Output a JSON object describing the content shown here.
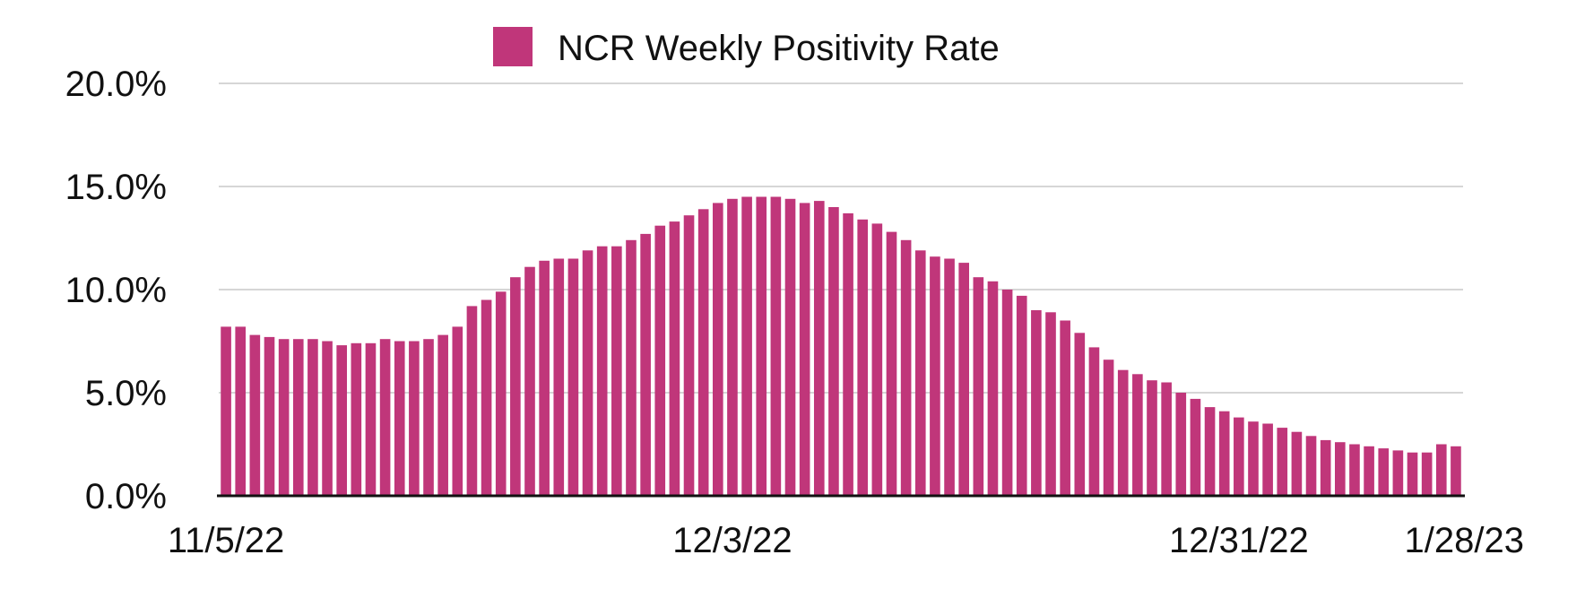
{
  "chart_data": {
    "type": "bar",
    "title": "",
    "xlabel": "",
    "ylabel": "",
    "ylim": [
      0,
      20
    ],
    "y_tick_values": [
      0,
      5,
      10,
      15,
      20
    ],
    "y_tick_labels": [
      "0.0%",
      "5.0%",
      "10.0%",
      "15.0%",
      "20.0%"
    ],
    "x_tick_labels": [
      {
        "label": "11/5/22",
        "index": 0
      },
      {
        "label": "12/3/22",
        "index": 35
      },
      {
        "label": "12/31/22",
        "index": 70
      },
      {
        "label": "1/28/23",
        "index": 105
      }
    ],
    "grid": true,
    "legend_position": "top-center",
    "series": [
      {
        "name": "NCR Weekly Positivity Rate",
        "color": "#c0367a",
        "values": [
          8.2,
          8.2,
          7.8,
          7.7,
          7.6,
          7.6,
          7.6,
          7.5,
          7.3,
          7.4,
          7.4,
          7.6,
          7.5,
          7.5,
          7.6,
          7.8,
          8.2,
          9.2,
          9.5,
          9.9,
          10.6,
          11.1,
          11.4,
          11.5,
          11.5,
          11.9,
          12.1,
          12.1,
          12.4,
          12.7,
          13.1,
          13.3,
          13.6,
          13.9,
          14.2,
          14.4,
          14.5,
          14.5,
          14.5,
          14.4,
          14.2,
          14.3,
          14.0,
          13.7,
          13.4,
          13.2,
          12.8,
          12.4,
          11.9,
          11.6,
          11.5,
          11.3,
          10.6,
          10.4,
          10.0,
          9.7,
          9.0,
          8.9,
          8.5,
          7.9,
          7.2,
          6.6,
          6.1,
          5.9,
          5.6,
          5.5,
          5.0,
          4.7,
          4.3,
          4.1,
          3.8,
          3.6,
          3.5,
          3.3,
          3.1,
          2.9,
          2.7,
          2.6,
          2.5,
          2.4,
          2.3,
          2.2,
          2.1,
          2.1,
          2.5,
          2.4
        ]
      }
    ]
  }
}
